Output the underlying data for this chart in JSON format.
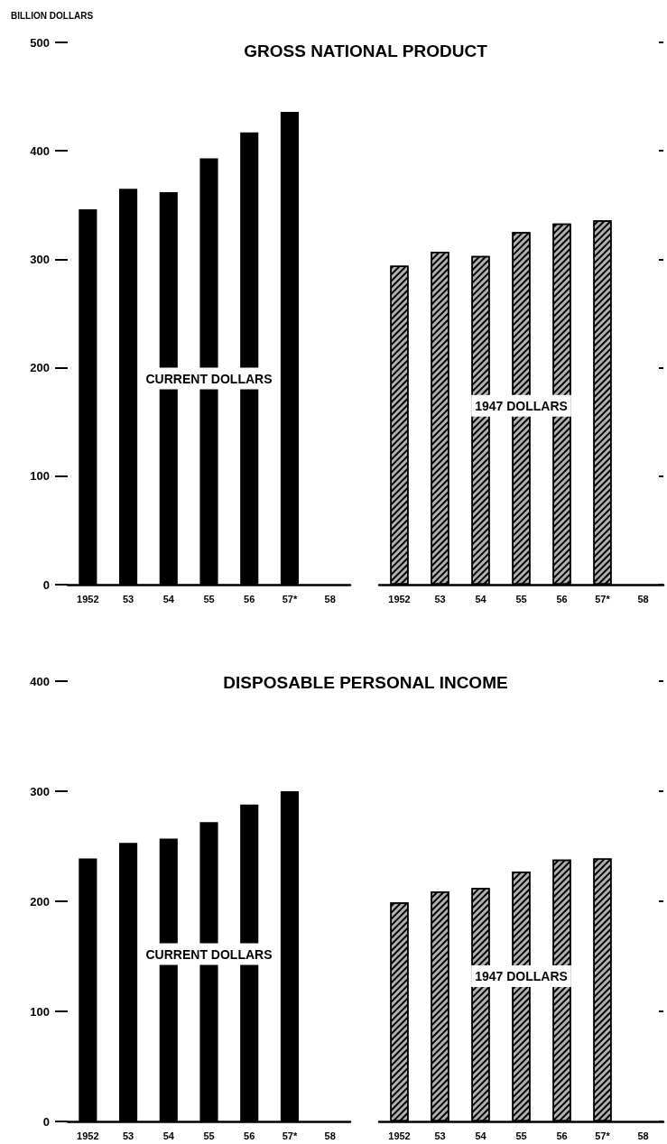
{
  "chart_data": [
    {
      "type": "bar",
      "title": "GROSS NATIONAL PRODUCT",
      "ylabel": "BILLION DOLLARS",
      "categories": [
        "1952",
        "53",
        "54",
        "55",
        "56",
        "57*",
        "58"
      ],
      "series": [
        {
          "name": "CURRENT DOLLARS",
          "color": "#000000",
          "values": [
            346,
            365,
            362,
            393,
            417,
            436,
            null
          ]
        }
      ],
      "ylim": [
        0,
        500
      ],
      "yticks": [
        0,
        100,
        200,
        300,
        400,
        500
      ]
    },
    {
      "type": "bar",
      "categories": [
        "1952",
        "53",
        "54",
        "55",
        "56",
        "57*",
        "58"
      ],
      "series": [
        {
          "name": "1947 DOLLARS",
          "color": "#b0b0b0",
          "values": [
            294,
            307,
            303,
            325,
            333,
            336,
            null
          ]
        }
      ],
      "ylim": [
        0,
        500
      ],
      "yticks": [
        0,
        100,
        200,
        300,
        400,
        500
      ],
      "tick_labels": "x"
    },
    {
      "type": "bar",
      "title": "DISPOSABLE PERSONAL INCOME",
      "categories": [
        "1952",
        "53",
        "54",
        "55",
        "56",
        "57*",
        "58"
      ],
      "series": [
        {
          "name": "CURRENT DOLLARS",
          "color": "#000000",
          "values": [
            239,
            253,
            257,
            272,
            288,
            300,
            null
          ]
        }
      ],
      "ylim": [
        0,
        400
      ],
      "yticks": [
        0,
        100,
        200,
        300,
        400
      ]
    },
    {
      "type": "bar",
      "categories": [
        "1952",
        "53",
        "54",
        "55",
        "56",
        "57*",
        "58"
      ],
      "series": [
        {
          "name": "1947 DOLLARS",
          "color": "#b0b0b0",
          "values": [
            199,
            209,
            212,
            227,
            238,
            239,
            null
          ]
        }
      ],
      "ylim": [
        0,
        400
      ],
      "yticks": [
        0,
        100,
        200,
        300,
        400
      ],
      "tick_labels": "x"
    }
  ]
}
